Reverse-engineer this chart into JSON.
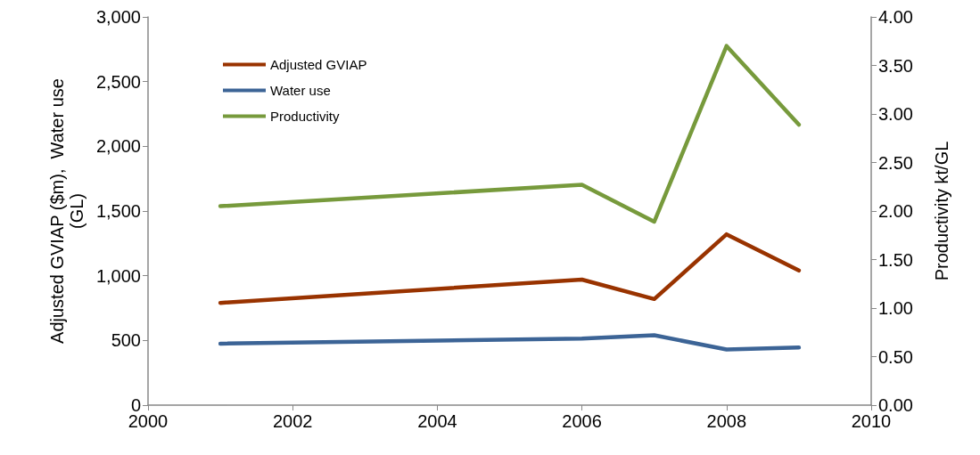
{
  "chart_data": {
    "type": "line",
    "ylabel": "Adjusted GVIAP ($m),  Water use\n(GL)",
    "y2label": "Productivity kt/GL",
    "x": [
      2001,
      2006,
      2007,
      2008,
      2009
    ],
    "series": [
      {
        "name": "Adjusted GVIAP",
        "color": "#993300",
        "values": [
          790,
          970,
          820,
          1320,
          1040
        ]
      },
      {
        "name": "Water use",
        "color": "#3c6496",
        "values": [
          475,
          515,
          540,
          430,
          445
        ]
      },
      {
        "name": "Productivity",
        "color": "#779a3c",
        "axis": "y2",
        "values": [
          2.05,
          2.27,
          1.89,
          3.7,
          2.89
        ]
      }
    ],
    "xlim": [
      2000,
      2010
    ],
    "xticks": [
      2000,
      2002,
      2004,
      2006,
      2008,
      2010
    ],
    "ylim": [
      0,
      3000
    ],
    "yticks": [
      0,
      500,
      {
        "value": 1000,
        "label": "1,000"
      },
      {
        "value": 1500,
        "label": "1,500"
      },
      {
        "value": 2000,
        "label": "2,000"
      },
      {
        "value": 2500,
        "label": "2,500"
      },
      {
        "value": 3000,
        "label": "3,000"
      }
    ],
    "y2lim": [
      0,
      4
    ],
    "y2ticks": [
      {
        "value": 0,
        "label": "0.00"
      },
      {
        "value": 0.5,
        "label": "0.50"
      },
      {
        "value": 1,
        "label": "1.00"
      },
      {
        "value": 1.5,
        "label": "1.50"
      },
      {
        "value": 2,
        "label": "2.00"
      },
      {
        "value": 2.5,
        "label": "2.50"
      },
      {
        "value": 3,
        "label": "3.00"
      },
      {
        "value": 3.5,
        "label": "3.50"
      },
      {
        "value": 4,
        "label": "4.00"
      }
    ],
    "grid": false,
    "legend": "top left",
    "marker": "none",
    "line_style": "solid"
  }
}
